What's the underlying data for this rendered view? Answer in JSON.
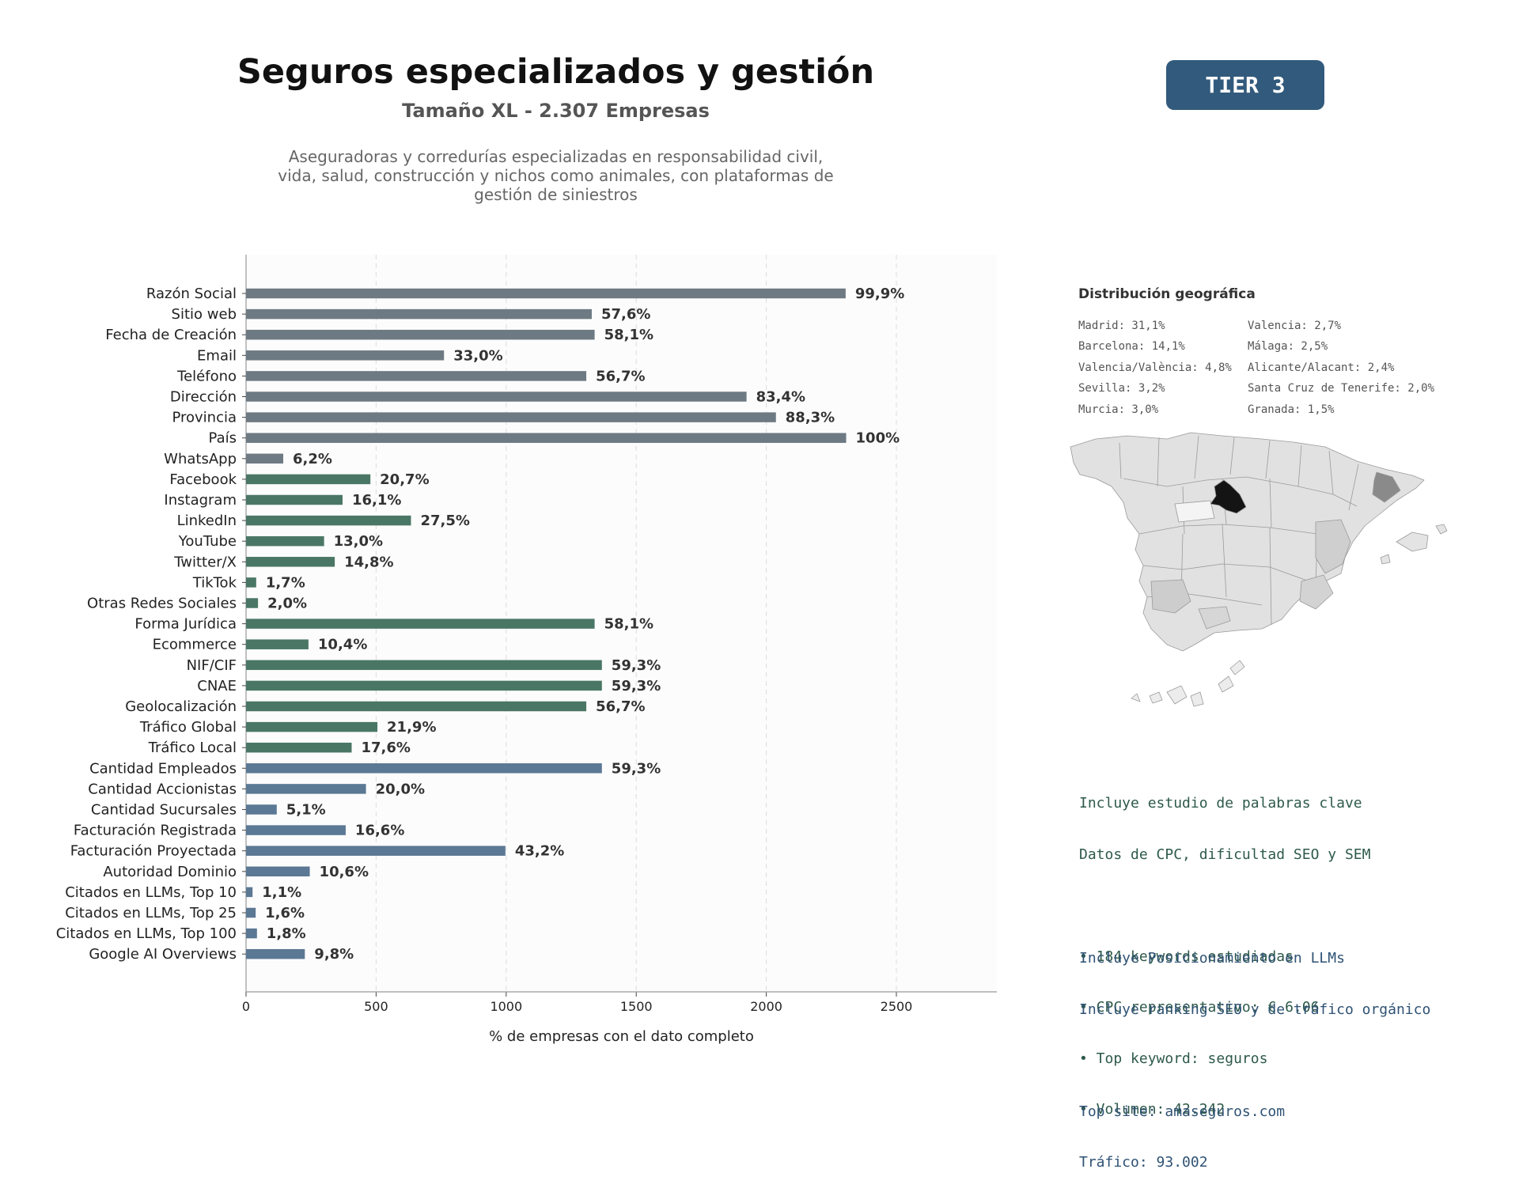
{
  "header": {
    "title": "Seguros especializados y gestión",
    "subtitle": "Tamaño XL - 2.307 Empresas",
    "description_lines": [
      "Aseguradoras y corredurías especializadas en responsabilidad civil,",
      "vida, salud, construcción y nichos como animales, con plataformas de",
      "gestión de siniestros"
    ],
    "tier": "TIER 3"
  },
  "chart_data": {
    "type": "bar",
    "orientation": "horizontal",
    "xlabel": "% de empresas con el dato completo",
    "ylabel": "",
    "xlim": [
      0,
      2900
    ],
    "xticks": [
      0,
      500,
      1000,
      1500,
      2000,
      2500
    ],
    "grid": "vertical dashed",
    "categories": [
      "Razón Social",
      "Sitio web",
      "Fecha de Creación",
      "Email",
      "Teléfono",
      "Dirección",
      "Provincia",
      "País",
      "WhatsApp",
      "Facebook",
      "Instagram",
      "LinkedIn",
      "YouTube",
      "Twitter/X",
      "TikTok",
      "Otras Redes Sociales",
      "Forma Jurídica",
      "Ecommerce",
      "NIF/CIF",
      "CNAE",
      "Geolocalización",
      "Tráfico Global",
      "Tráfico Local",
      "Cantidad Empleados",
      "Cantidad Accionistas",
      "Cantidad Sucursales",
      "Facturación Registrada",
      "Facturación Proyectada",
      "Autoridad Dominio",
      "Citados en LLMs, Top 10",
      "Citados en LLMs, Top 25",
      "Citados en LLMs, Top 100",
      "Google AI Overviews"
    ],
    "values": [
      2305,
      1329,
      1340,
      761,
      1308,
      1924,
      2037,
      2307,
      143,
      478,
      371,
      634,
      300,
      341,
      39,
      46,
      1340,
      240,
      1368,
      1368,
      1308,
      505,
      406,
      1368,
      461,
      118,
      383,
      997,
      245,
      25,
      37,
      42,
      226
    ],
    "labels": [
      "99,9%",
      "57,6%",
      "58,1%",
      "33,0%",
      "56,7%",
      "83,4%",
      "88,3%",
      "100%",
      "6,2%",
      "20,7%",
      "16,1%",
      "27,5%",
      "13,0%",
      "14,8%",
      "1,7%",
      "2,0%",
      "58,1%",
      "10,4%",
      "59,3%",
      "59,3%",
      "56,7%",
      "21,9%",
      "17,6%",
      "59,3%",
      "20,0%",
      "5,1%",
      "16,6%",
      "43,2%",
      "10,6%",
      "1,1%",
      "1,6%",
      "1,8%",
      "9,8%"
    ],
    "groups": [
      "gray",
      "gray",
      "gray",
      "gray",
      "gray",
      "gray",
      "gray",
      "gray",
      "gray",
      "green",
      "green",
      "green",
      "green",
      "green",
      "green",
      "green",
      "green",
      "green",
      "green",
      "green",
      "green",
      "green",
      "green",
      "blue",
      "blue",
      "blue",
      "blue",
      "blue",
      "blue",
      "blue",
      "blue",
      "blue",
      "blue"
    ],
    "colors": {
      "gray": "#6e7a83",
      "green": "#4a7765",
      "blue": "#5b7894"
    }
  },
  "geo": {
    "title": "Distribución geográfica",
    "left": [
      "Madrid: 31,1%",
      "Barcelona: 14,1%",
      "Valencia/València: 4,8%",
      "Sevilla: 3,2%",
      "Murcia: 3,0%"
    ],
    "right": [
      "Valencia: 2,7%",
      "Málaga: 2,5%",
      "Alicante/Alacant: 2,4%",
      "Santa Cruz de Tenerife: 2,0%",
      "Granada: 1,5%"
    ]
  },
  "keywords": {
    "lines": [
      "Incluye estudio de palabras clave",
      "Datos de CPC, dificultad SEO y SEM"
    ],
    "bullets": [
      "• 184 keywords estudiadas",
      "• CPC representativo: € 6.06",
      "• Top keyword: seguros",
      "• Volumen: 42.242"
    ]
  },
  "llm": {
    "lines": [
      "Incluye Posicionamiento en LLMs",
      "Incluye ranking SEO y de tráfico orgánico"
    ],
    "top_site": "Top site: amaseguros.com",
    "traffic": "Tráfico: 93.002"
  }
}
